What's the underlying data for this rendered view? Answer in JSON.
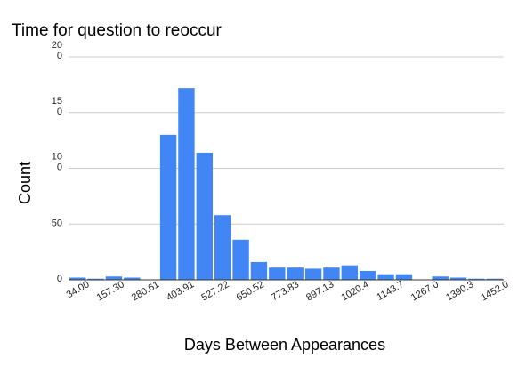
{
  "chart_data": {
    "type": "bar",
    "title": "Time for question to reoccur",
    "xlabel": "Days Between Appearances",
    "ylabel": "Count",
    "ylim": [
      0,
      200
    ],
    "y_ticks": [
      {
        "value": 0,
        "label": "0"
      },
      {
        "value": 50,
        "label": "50"
      },
      {
        "value": 100,
        "label": "10\n0"
      },
      {
        "value": 150,
        "label": "15\n0"
      },
      {
        "value": 200,
        "label": "20\n0"
      }
    ],
    "x_tick_labels": [
      "34.00",
      "157.30",
      "280.61",
      "403.91",
      "527.22",
      "650.52",
      "773.83",
      "897.13",
      "1020.4",
      "1143.7",
      "1267.0",
      "1390.3",
      "1452.0"
    ],
    "values": [
      2,
      1,
      3,
      2,
      0,
      130,
      172,
      114,
      58,
      36,
      16,
      11,
      11,
      10,
      11,
      13,
      8,
      5,
      5,
      0,
      3,
      2,
      1,
      1
    ],
    "bar_color": "#4285f4",
    "grid": true,
    "legend": "none"
  }
}
